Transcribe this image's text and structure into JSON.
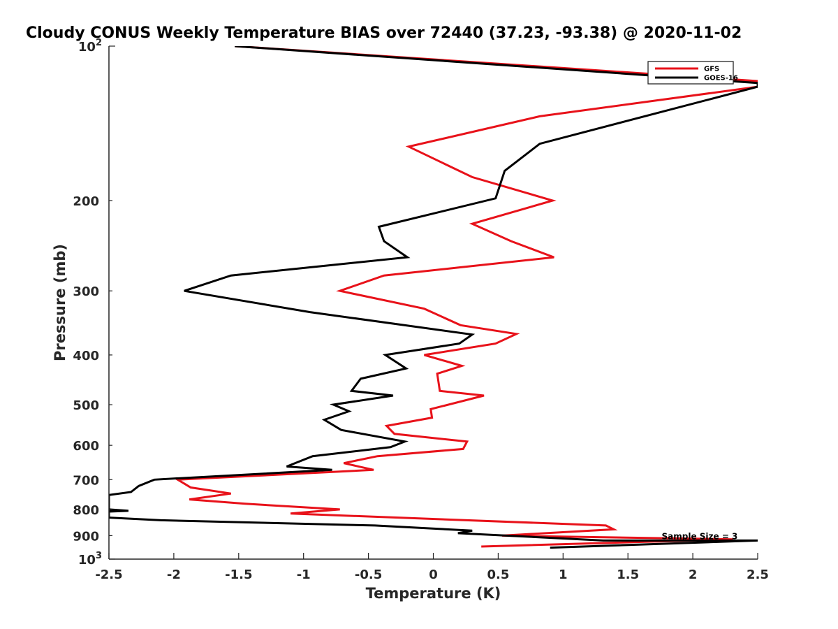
{
  "chart_data": {
    "type": "line",
    "title": "Cloudy CONUS Weekly Temperature BIAS over 72440 (37.23, -93.38) @ 2020-11-02",
    "xlabel": "Temperature (K)",
    "ylabel": "Pressure (mb)",
    "xlim": [
      -2.5,
      2.5
    ],
    "ylim": [
      100,
      1000
    ],
    "y_scale": "log",
    "y_reversed": true,
    "grid": false,
    "legend_placement": "top-right",
    "x_ticks": [
      -2.5,
      -2,
      -1.5,
      -1,
      -0.5,
      0,
      0.5,
      1,
      1.5,
      2,
      2.5
    ],
    "x_tick_labels": [
      "-2.5",
      "-2",
      "-1.5",
      "-1",
      "-0.5",
      "0",
      "0.5",
      "1",
      "1.5",
      "2",
      "2.5"
    ],
    "y_ticks": [
      200,
      300,
      400,
      500,
      600,
      700,
      800,
      900
    ],
    "y_tick_labels": [
      "200",
      "300",
      "400",
      "500",
      "600",
      "700",
      "800",
      "900"
    ],
    "y_end_labels": [
      {
        "value": 100,
        "base": "10",
        "exp": "2"
      },
      {
        "value": 1000,
        "base": "10",
        "exp": "3"
      }
    ],
    "series": [
      {
        "name": "GFS",
        "color": "#e8121a",
        "points": [
          [
            -1.53,
            100
          ],
          [
            2.5,
            117
          ],
          [
            2.5,
            120
          ],
          [
            0.82,
            137
          ],
          [
            -0.19,
            157
          ],
          [
            0.3,
            180
          ],
          [
            0.92,
            200
          ],
          [
            0.3,
            222
          ],
          [
            0.6,
            240
          ],
          [
            0.93,
            258
          ],
          [
            -0.38,
            280
          ],
          [
            -0.72,
            300
          ],
          [
            -0.07,
            325
          ],
          [
            0.21,
            350
          ],
          [
            0.64,
            364
          ],
          [
            0.48,
            380
          ],
          [
            -0.07,
            400
          ],
          [
            0.22,
            420
          ],
          [
            0.03,
            435
          ],
          [
            0.05,
            470
          ],
          [
            0.39,
            480
          ],
          [
            -0.02,
            510
          ],
          [
            -0.01,
            530
          ],
          [
            -0.36,
            550
          ],
          [
            -0.3,
            570
          ],
          [
            0.26,
            590
          ],
          [
            0.23,
            610
          ],
          [
            -0.43,
            630
          ],
          [
            -0.69,
            650
          ],
          [
            -0.46,
            670
          ],
          [
            -1.97,
            700
          ],
          [
            -1.87,
            725
          ],
          [
            -1.56,
            745
          ],
          [
            -1.88,
            765
          ],
          [
            -1.45,
            780
          ],
          [
            -0.72,
            800
          ],
          [
            -1.1,
            815
          ],
          [
            1.33,
            860
          ],
          [
            1.39,
            875
          ],
          [
            0.53,
            900
          ],
          [
            2.31,
            915
          ],
          [
            0.37,
            945
          ]
        ]
      },
      {
        "name": "GOES-16",
        "color": "#000000",
        "points": [
          [
            -1.53,
            100
          ],
          [
            2.5,
            118
          ],
          [
            2.5,
            120
          ],
          [
            0.82,
            155
          ],
          [
            0.55,
            175
          ],
          [
            0.48,
            198
          ],
          [
            -0.42,
            225
          ],
          [
            -0.38,
            240
          ],
          [
            -0.2,
            258
          ],
          [
            -1.56,
            280
          ],
          [
            -1.92,
            300
          ],
          [
            -0.95,
            330
          ],
          [
            0.3,
            365
          ],
          [
            0.2,
            380
          ],
          [
            -0.37,
            400
          ],
          [
            -0.21,
            425
          ],
          [
            -0.56,
            445
          ],
          [
            -0.63,
            470
          ],
          [
            -0.31,
            480
          ],
          [
            -0.77,
            500
          ],
          [
            -0.65,
            515
          ],
          [
            -0.84,
            535
          ],
          [
            -0.71,
            560
          ],
          [
            -0.22,
            590
          ],
          [
            -0.33,
            605
          ],
          [
            -0.93,
            630
          ],
          [
            -1.13,
            660
          ],
          [
            -0.78,
            670
          ],
          [
            -2.15,
            700
          ],
          [
            -2.27,
            720
          ],
          [
            -2.33,
            740
          ],
          [
            -2.5,
            750
          ],
          [
            -2.5,
            800
          ],
          [
            -2.35,
            805
          ],
          [
            -2.5,
            808
          ],
          [
            -2.5,
            830
          ],
          [
            -2.1,
            840
          ],
          [
            -0.45,
            860
          ],
          [
            0.3,
            880
          ],
          [
            0.19,
            890
          ],
          [
            1.31,
            920
          ],
          [
            2.5,
            920
          ],
          [
            0.9,
            950
          ]
        ]
      }
    ],
    "annotations": [
      {
        "text": "Sample Size = 3",
        "x": 1.76,
        "y": 900
      }
    ]
  }
}
